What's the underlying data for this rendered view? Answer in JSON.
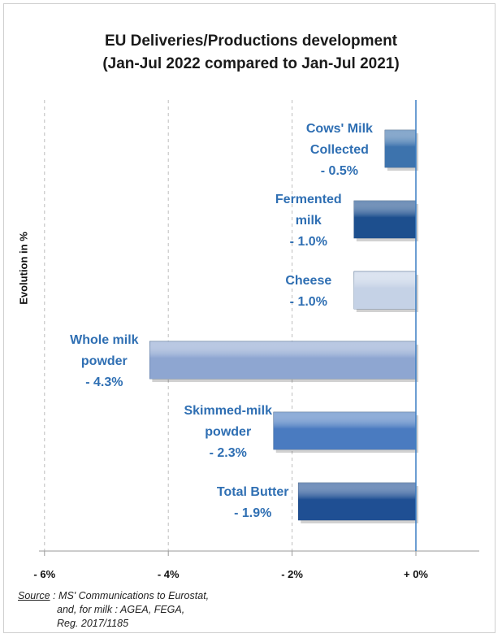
{
  "chart_data": {
    "type": "bar",
    "orientation": "horizontal",
    "title": "EU Deliveries/Productions development",
    "subtitle": "(Jan-Jul 2022 compared to Jan-Jul 2021)",
    "ylabel": "Evolution in %",
    "xlabel": "",
    "xlim": [
      -6.6,
      1.0
    ],
    "x_ticks": [
      -6,
      -4,
      -2,
      0
    ],
    "x_tick_labels": [
      "- 6%",
      "- 4%",
      "- 2%",
      "+ 0%"
    ],
    "grid": "vertical dashed",
    "bars": [
      {
        "label_lines": [
          "Cows' Milk",
          "Collected",
          "- 0.5%"
        ],
        "value": -0.5,
        "color": "#3d73ad"
      },
      {
        "label_lines": [
          "Fermented",
          "milk",
          "- 1.0%"
        ],
        "value": -1.0,
        "color": "#1d4f8e"
      },
      {
        "label_lines": [
          "Cheese",
          "- 1.0%"
        ],
        "value": -1.0,
        "color": "#c5d2e6"
      },
      {
        "label_lines": [
          "Whole milk",
          "powder",
          "- 4.3%"
        ],
        "value": -4.3,
        "color": "#8ea6d1"
      },
      {
        "label_lines": [
          "Skimmed-milk",
          "powder",
          "- 2.3%"
        ],
        "value": -2.3,
        "color": "#4a7bc0"
      },
      {
        "label_lines": [
          "Total Butter",
          "- 1.9%"
        ],
        "value": -1.9,
        "color": "#1f4f93"
      }
    ]
  },
  "source": {
    "label": "Source",
    "line1": ": MS' Communications to Eurostat,",
    "line2": "and, for milk : AGEA, FEGA,",
    "line3": "Reg. 2017/1185"
  }
}
